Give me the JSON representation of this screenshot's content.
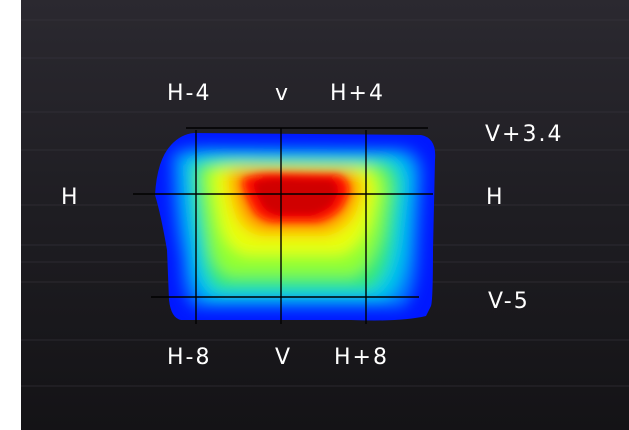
{
  "figure": {
    "background": "#1c1b1f",
    "grid_color": "#000000",
    "label_color": "#ffffff",
    "colormap": [
      "#0000ff",
      "#00a0ff",
      "#00e0c0",
      "#40f040",
      "#c0ff20",
      "#ffff00",
      "#ff8000",
      "#ff0000",
      "#c00000"
    ]
  },
  "labels": {
    "top_left": "H-4",
    "top_center": "v",
    "top_right": "H+4",
    "right_upper": "V+3.4",
    "left_mid": "H",
    "right_mid": "H",
    "right_lower": "V-5",
    "bottom_left": "H-8",
    "bottom_center": "V",
    "bottom_right": "H+8"
  }
}
